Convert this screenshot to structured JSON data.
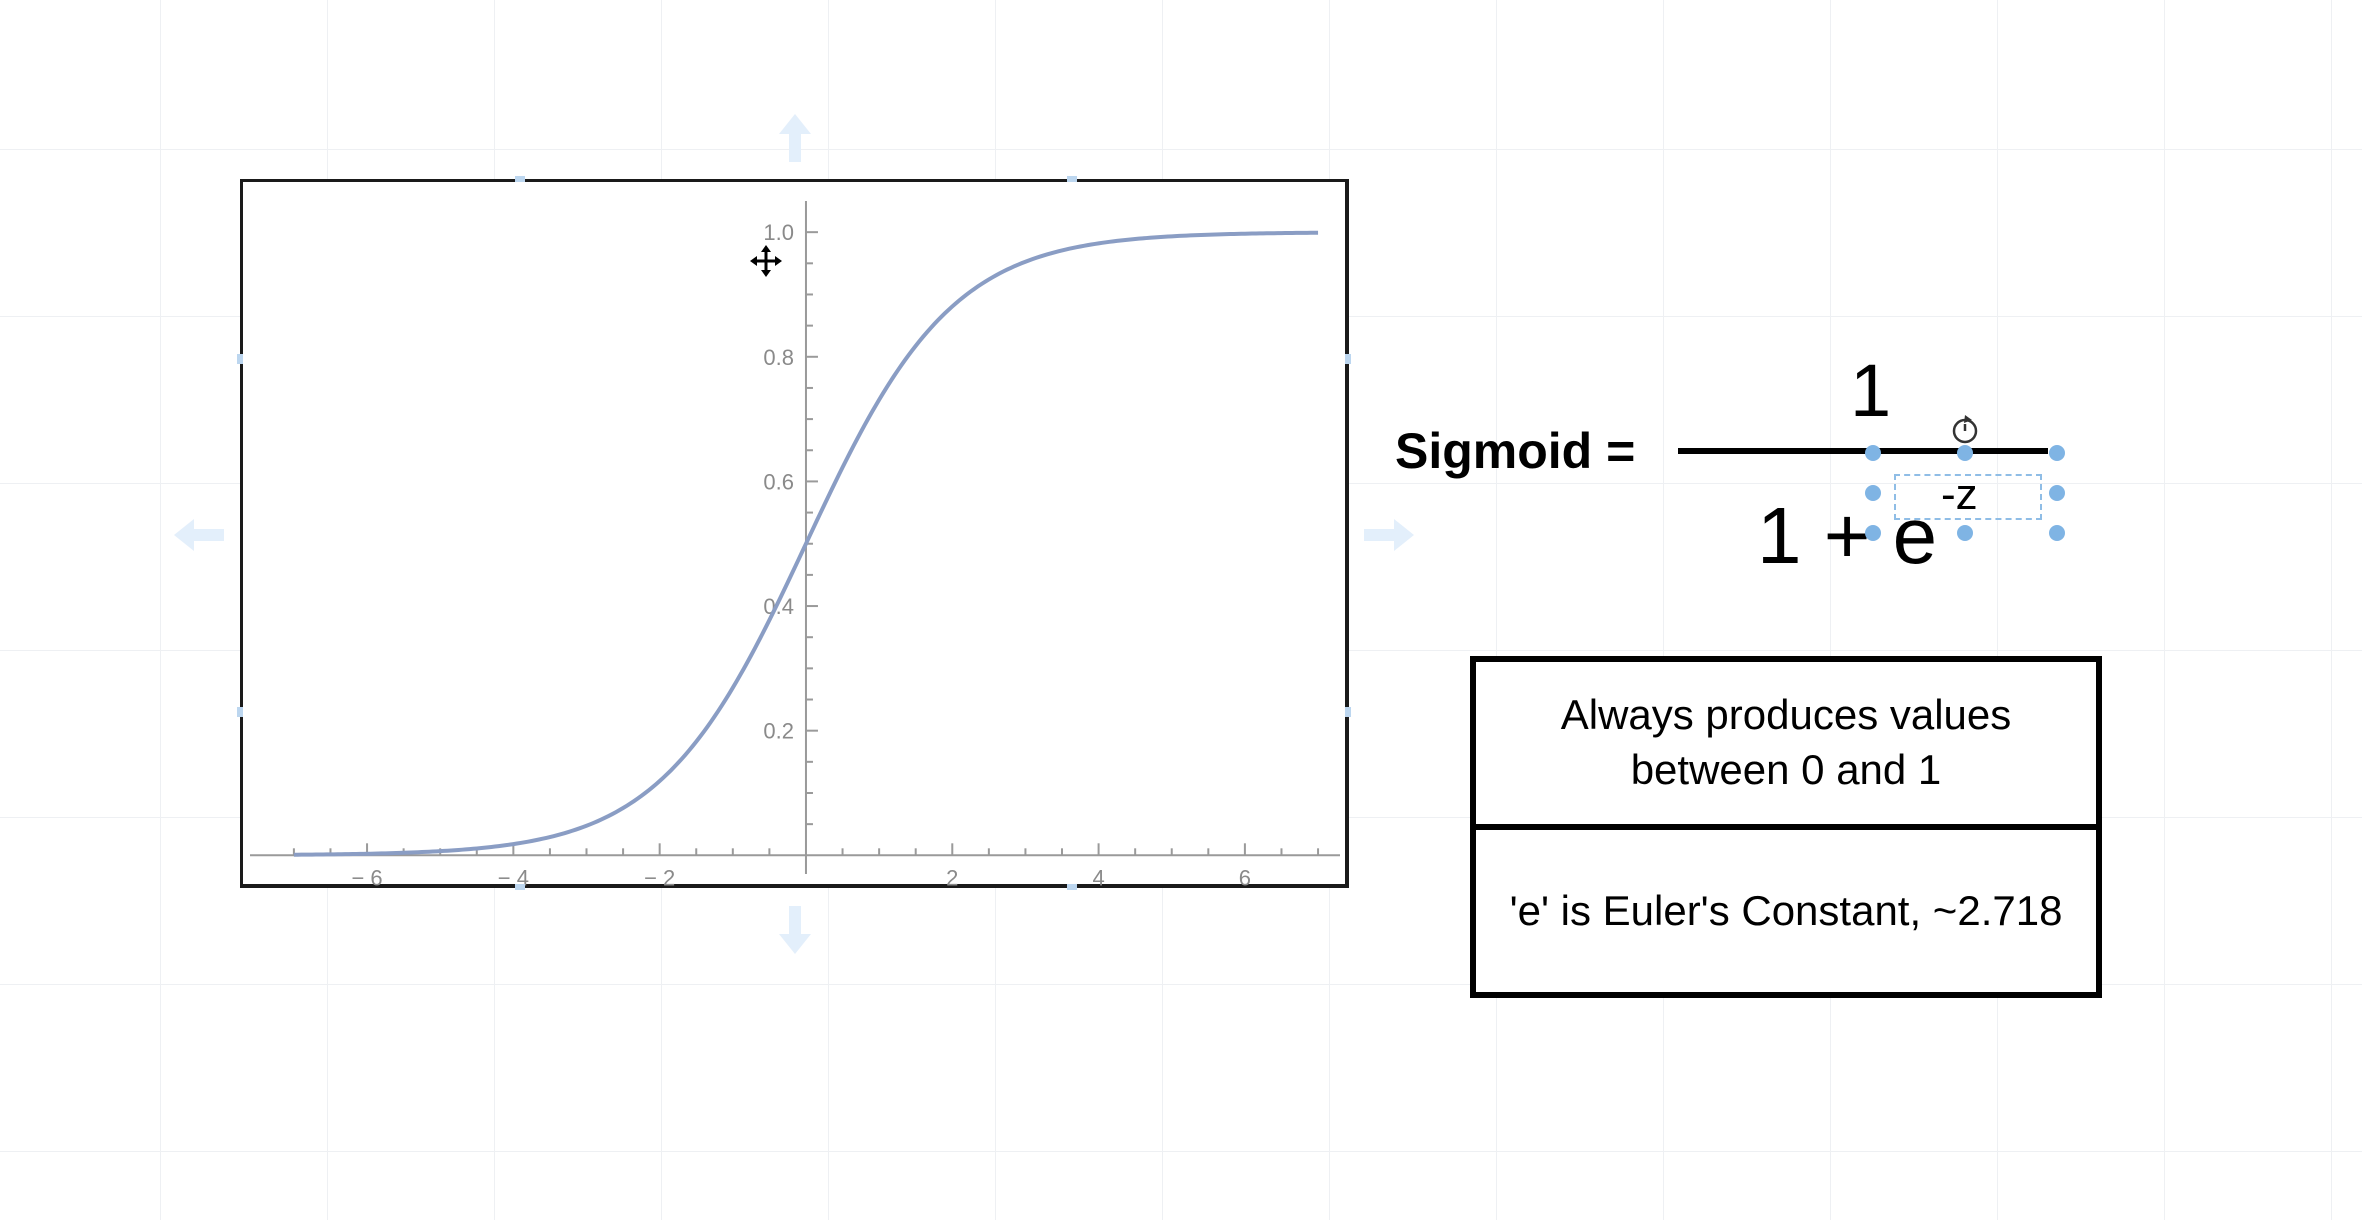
{
  "chart_data": {
    "type": "line",
    "function": "sigmoid",
    "series": [
      {
        "x": [
          -7,
          -6,
          -5,
          -4,
          -3,
          -2,
          -1.5,
          -1,
          -0.5,
          0,
          0.5,
          1,
          1.5,
          2,
          3,
          4,
          5,
          6,
          7
        ],
        "y": [
          0.001,
          0.0025,
          0.0067,
          0.018,
          0.047,
          0.119,
          0.182,
          0.269,
          0.378,
          0.5,
          0.622,
          0.731,
          0.818,
          0.881,
          0.953,
          0.982,
          0.9933,
          0.9975,
          0.999
        ]
      }
    ],
    "xlim": [
      -7.6,
      7.3
    ],
    "ylim": [
      -0.03,
      1.05
    ],
    "xticks": [
      -6,
      -4,
      -2,
      2,
      4,
      6
    ],
    "xtick_labels": [
      "− 6",
      "− 4",
      "− 2",
      "2",
      "4",
      "6"
    ],
    "yticks": [
      0.2,
      0.4,
      0.6,
      0.8,
      1.0
    ],
    "ytick_labels": [
      "0.2",
      "0.4",
      "0.6",
      "0.8",
      "1.0"
    ],
    "grid": false,
    "line_color": "#8a9dc4"
  },
  "equation": {
    "label": "Sigmoid =",
    "numerator": "1",
    "denominator": "1 + e",
    "exponent": "-z"
  },
  "notes": [
    {
      "text": "Always produces values between 0 and 1"
    },
    {
      "text": "'e' is Euler's Constant, ~2.718"
    }
  ],
  "icons": {
    "move_cursor": "move-cursor-icon",
    "rotate_handle": "rotate-icon",
    "selection_handle_color": "#7fb4e4",
    "connection_arrow_color": "#e3effb"
  }
}
